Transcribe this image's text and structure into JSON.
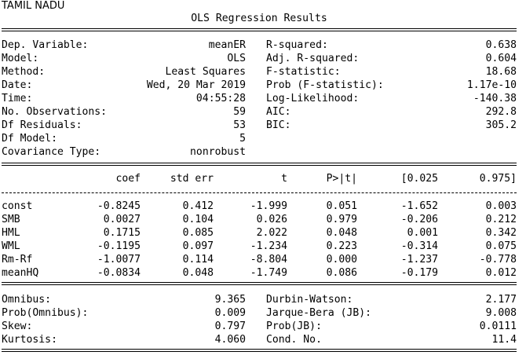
{
  "region": "TAMIL NADU",
  "title": "OLS Regression Results",
  "summary_left": [
    {
      "label": "Dep. Variable:",
      "value": "meanER"
    },
    {
      "label": "Model:",
      "value": "OLS"
    },
    {
      "label": "Method:",
      "value": "Least Squares"
    },
    {
      "label": "Date:",
      "value": "Wed, 20 Mar 2019"
    },
    {
      "label": "Time:",
      "value": "04:55:28"
    },
    {
      "label": "No. Observations:",
      "value": "59"
    },
    {
      "label": "Df Residuals:",
      "value": "53"
    },
    {
      "label": "Df Model:",
      "value": "5"
    },
    {
      "label": "Covariance Type:",
      "value": "nonrobust"
    }
  ],
  "summary_right": [
    {
      "label": "R-squared:",
      "value": "0.638"
    },
    {
      "label": "Adj. R-squared:",
      "value": "0.604"
    },
    {
      "label": "F-statistic:",
      "value": "18.68"
    },
    {
      "label": "Prob (F-statistic):",
      "value": "1.17e-10"
    },
    {
      "label": "Log-Likelihood:",
      "value": "-140.38"
    },
    {
      "label": "AIC:",
      "value": "292.8"
    },
    {
      "label": "BIC:",
      "value": "305.2"
    }
  ],
  "coef_table": {
    "headers": [
      "coef",
      "std err",
      "t",
      "P>|t|",
      "[0.025",
      "0.975]"
    ],
    "rows": [
      {
        "name": "const",
        "cells": [
          "-0.8245",
          "0.412",
          "-1.999",
          "0.051",
          "-1.652",
          "0.003"
        ]
      },
      {
        "name": "SMB",
        "cells": [
          "0.0027",
          "0.104",
          "0.026",
          "0.979",
          "-0.206",
          "0.212"
        ]
      },
      {
        "name": "HML",
        "cells": [
          "0.1715",
          "0.085",
          "2.022",
          "0.048",
          "0.001",
          "0.342"
        ]
      },
      {
        "name": "WML",
        "cells": [
          "-0.1195",
          "0.097",
          "-1.234",
          "0.223",
          "-0.314",
          "0.075"
        ]
      },
      {
        "name": "Rm-Rf",
        "cells": [
          "-1.0077",
          "0.114",
          "-8.804",
          "0.000",
          "-1.237",
          "-0.778"
        ]
      },
      {
        "name": "meanHQ",
        "cells": [
          "-0.0834",
          "0.048",
          "-1.749",
          "0.086",
          "-0.179",
          "0.012"
        ]
      }
    ]
  },
  "diagnostics_left": [
    {
      "label": "Omnibus:",
      "value": "9.365"
    },
    {
      "label": "Prob(Omnibus):",
      "value": "0.009"
    },
    {
      "label": "Skew:",
      "value": "0.797"
    },
    {
      "label": "Kurtosis:",
      "value": "4.060"
    }
  ],
  "diagnostics_right": [
    {
      "label": "Durbin-Watson:",
      "value": "2.177"
    },
    {
      "label": "Jarque-Bera (JB):",
      "value": "9.008"
    },
    {
      "label": "Prob(JB):",
      "value": "0.0111"
    },
    {
      "label": "Cond. No.",
      "value": "11.4"
    }
  ]
}
